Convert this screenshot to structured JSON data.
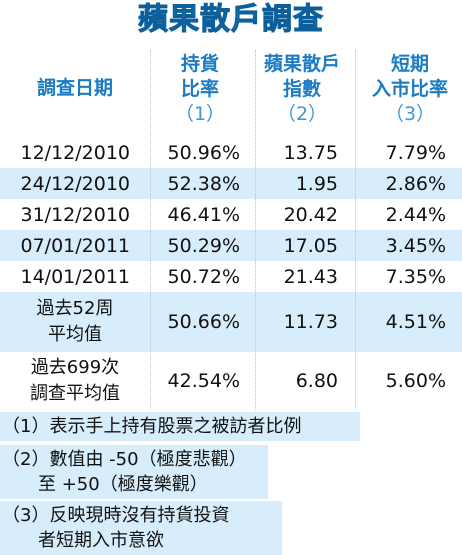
{
  "title": "蘋果散戶調查",
  "header": [
    [
      "調查日期"
    ],
    [
      "持貨",
      "比率",
      "（1）"
    ],
    [
      "蘋果散戶",
      "指數",
      "（2）"
    ],
    [
      "短期",
      "入市比率",
      "（3）"
    ]
  ],
  "rows": [
    [
      [
        "12/12/2010"
      ],
      "50.96%",
      "13.75",
      "7.79%"
    ],
    [
      [
        "24/12/2010"
      ],
      "52.38%",
      "1.95",
      "2.86%"
    ],
    [
      [
        "31/12/2010"
      ],
      "46.41%",
      "20.42",
      "2.44%"
    ],
    [
      [
        "07/01/2011"
      ],
      "50.29%",
      "17.05",
      "3.45%"
    ],
    [
      [
        "14/01/2011"
      ],
      "50.72%",
      "21.43",
      "7.35%"
    ],
    [
      [
        "過去52周",
        "平均值"
      ],
      "50.66%",
      "11.73",
      "4.51%"
    ],
    [
      [
        "過去699次",
        "調查平均值"
      ],
      "42.54%",
      "6.80",
      "5.60%"
    ]
  ],
  "footnotes": [
    [
      "（1）表示手上持有股票之被訪者比例"
    ],
    [
      "（2）數值由 -50（極度悲觀）",
      "　　至 +50（極度樂觀）"
    ],
    [
      "（3）反映現時沒有持貨投資",
      "　　者短期入市意欲"
    ]
  ]
}
